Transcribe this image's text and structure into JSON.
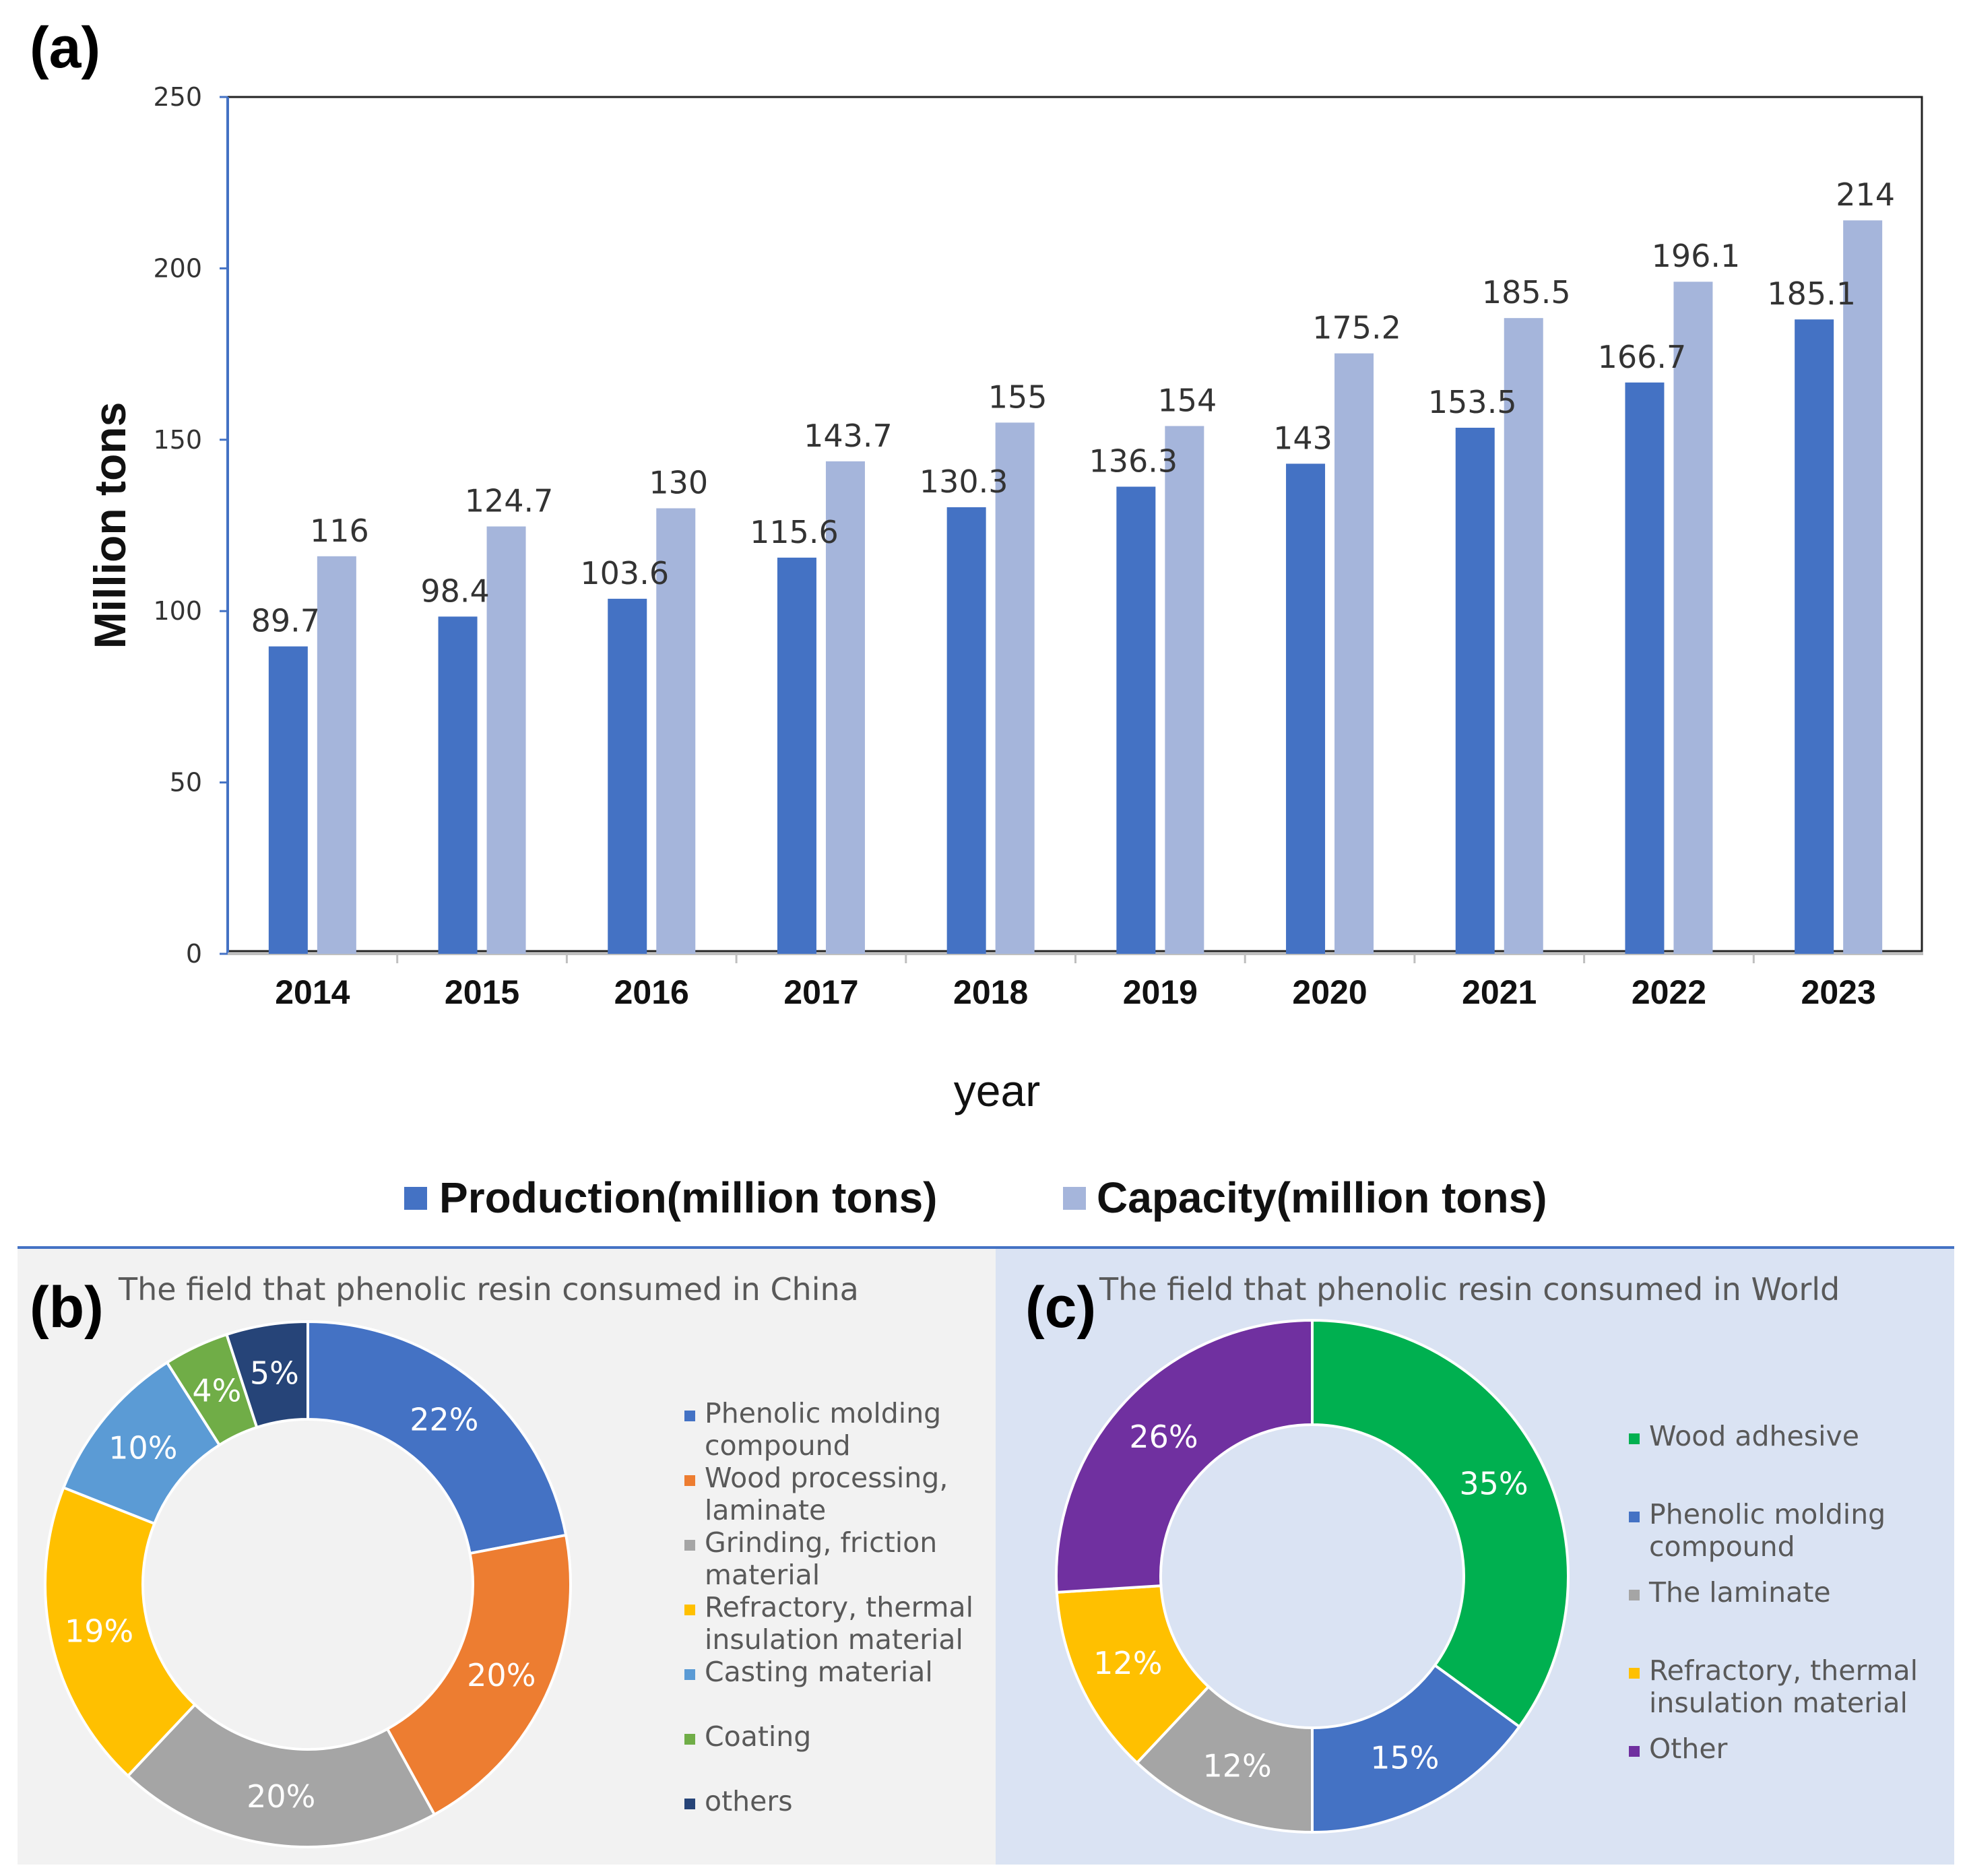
{
  "panel_labels": {
    "a": "(a)",
    "b": "(b)",
    "c": "(c)"
  },
  "colors": {
    "production": "#4472C4",
    "capacity": "#A5B5DB",
    "panel_b_bg": "#F2F2F2",
    "panel_c_bg": "#DAE3F3",
    "panel_border": "#4472C4"
  },
  "chart_data": [
    {
      "type": "bar",
      "categories": [
        "2014",
        "2015",
        "2016",
        "2017",
        "2018",
        "2019",
        "2020",
        "2021",
        "2022",
        "2023"
      ],
      "series": [
        {
          "name": "Production(million tons)",
          "color": "#4472C4",
          "values": [
            89.7,
            98.4,
            103.6,
            115.6,
            130.3,
            136.3,
            143,
            153.5,
            166.7,
            185.1
          ],
          "labels": [
            "89.7",
            "98.4",
            "103.6",
            "115.6",
            "130.3",
            "136.3",
            "143",
            "153.5",
            "166.7",
            "185.1"
          ]
        },
        {
          "name": "Capacity(million tons)",
          "color": "#A5B5DB",
          "values": [
            116,
            124.7,
            130,
            143.7,
            155,
            154,
            175.2,
            185.5,
            196.1,
            214
          ],
          "labels": [
            "116",
            "124.7",
            "130",
            "143.7",
            "155",
            "154",
            "175.2",
            "185.5",
            "196.1",
            "214"
          ]
        }
      ],
      "xlabel": "year",
      "ylabel": "Million tons",
      "ylim": [
        0,
        250
      ],
      "yticks": [
        "0",
        "50",
        "100",
        "150",
        "200",
        "250"
      ],
      "legend_position": "bottom",
      "grid": false
    },
    {
      "type": "pie",
      "title": "The field that phenolic resin consumed in China",
      "donut": true,
      "slices": [
        {
          "name": "Phenolic molding compound",
          "legend_lines": [
            "Phenolic molding",
            "compound"
          ],
          "value": 22,
          "label": "22%",
          "color": "#4472C4"
        },
        {
          "name": "Wood processing, laminate",
          "legend_lines": [
            "Wood processing,",
            "laminate"
          ],
          "value": 20,
          "label": "20%",
          "color": "#ED7D31"
        },
        {
          "name": "Grinding, friction material",
          "legend_lines": [
            "Grinding, friction",
            "material"
          ],
          "value": 20,
          "label": "20%",
          "color": "#A5A5A5"
        },
        {
          "name": "Refractory, thermal insulation material",
          "legend_lines": [
            "Refractory, thermal",
            "insulation material"
          ],
          "value": 19,
          "label": "19%",
          "color": "#FFC000"
        },
        {
          "name": "Casting material",
          "legend_lines": [
            "Casting material"
          ],
          "value": 10,
          "label": "10%",
          "color": "#5B9BD5"
        },
        {
          "name": "Coating",
          "legend_lines": [
            "Coating"
          ],
          "value": 4,
          "label": "4%",
          "color": "#70AD47"
        },
        {
          "name": "others",
          "legend_lines": [
            "others"
          ],
          "value": 5,
          "label": "5%",
          "color": "#264478"
        }
      ],
      "legend_position": "right"
    },
    {
      "type": "pie",
      "title": "The field that phenolic resin consumed in World",
      "donut": true,
      "slices": [
        {
          "name": "Wood adhesive",
          "legend_lines": [
            "Wood adhesive"
          ],
          "value": 35,
          "label": "35%",
          "color": "#00B050"
        },
        {
          "name": "Phenolic molding compound",
          "legend_lines": [
            "Phenolic molding",
            "compound"
          ],
          "value": 15,
          "label": "15%",
          "color": "#4472C4"
        },
        {
          "name": "The laminate",
          "legend_lines": [
            "The laminate"
          ],
          "value": 12,
          "label": "12%",
          "color": "#A5A5A5"
        },
        {
          "name": "Refractory, thermal insulation material",
          "legend_lines": [
            "Refractory, thermal",
            "insulation material"
          ],
          "value": 12,
          "label": "12%",
          "color": "#FFC000"
        },
        {
          "name": "Other",
          "legend_lines": [
            "Other"
          ],
          "value": 26,
          "label": "26%",
          "color": "#7030A0"
        }
      ],
      "legend_position": "right"
    }
  ]
}
